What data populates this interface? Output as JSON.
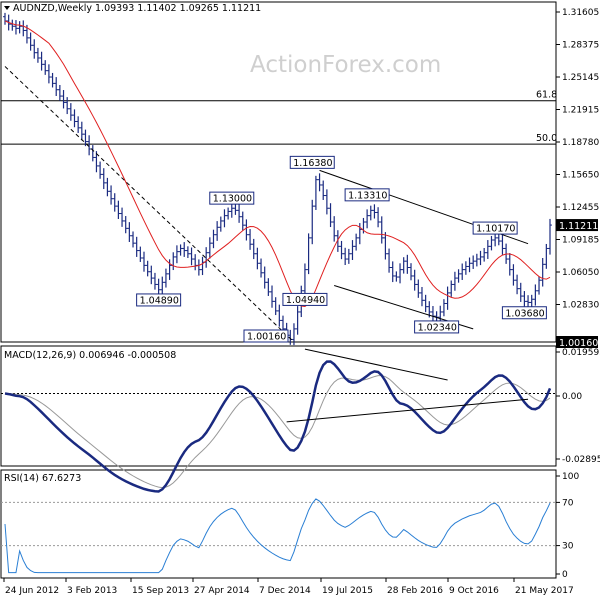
{
  "chart_data": [
    {
      "type": "ohlc",
      "title": "AUDNZD,Weekly",
      "ohlc_readout": {
        "open": "1.09393",
        "high": "1.11402",
        "low": "1.09265",
        "close": "1.11211"
      },
      "watermark": "ActionForex.com",
      "x_tick_labels": [
        "24 Jun 2012",
        "3 Feb 2013",
        "15 Sep 2013",
        "27 Apr 2014",
        "7 Dec 2014",
        "19 Jul 2015",
        "28 Feb 2016",
        "9 Oct 2016",
        "21 May 2017"
      ],
      "y_tick_labels": [
        "1.31605",
        "1.28375",
        "1.25145",
        "1.21915",
        "1.18780",
        "1.15650",
        "1.12455",
        "1.09185",
        "1.06050",
        "1.02830"
      ],
      "ylim": [
        1.0016,
        1.3229
      ],
      "current_price_label": "1.11211",
      "price_levels": [
        {
          "label": "61.8",
          "value": 1.2296
        },
        {
          "label": "50.0",
          "value": 1.1886
        },
        {
          "label": "1.00160",
          "value": 1.0016
        }
      ],
      "swing_labels": [
        {
          "text": "1.16380",
          "index": 84,
          "value": 1.1638
        },
        {
          "text": "1.13310",
          "index": 99,
          "value": 1.1331
        },
        {
          "text": "1.13000",
          "index": 62,
          "value": 1.13
        },
        {
          "text": "1.10170",
          "index": 134,
          "value": 1.1017
        },
        {
          "text": "1.04890",
          "index": 42,
          "value": 1.0489
        },
        {
          "text": "1.04940",
          "index": 82,
          "value": 1.0494
        },
        {
          "text": "1.02340",
          "index": 118,
          "value": 1.0234
        },
        {
          "text": "1.03680",
          "index": 142,
          "value": 1.0368
        },
        {
          "text": "1.00160",
          "index": 78,
          "value": 1.0016
        }
      ],
      "trendlines": [
        {
          "style": "dashed",
          "from": {
            "index": 0,
            "value": 1.262
          },
          "to": {
            "index": 79,
            "value": 1.0016
          }
        },
        {
          "style": "solid",
          "from": {
            "index": 86,
            "value": 1.1638
          },
          "to": {
            "index": 143,
            "value": 1.0945
          }
        },
        {
          "style": "solid",
          "from": {
            "index": 90,
            "value": 1.055
          },
          "to": {
            "index": 128,
            "value": 1.014
          }
        }
      ],
      "series": [
        {
          "name": "price",
          "color": "#1a2a80",
          "closes": [
            1.305,
            1.302,
            1.3,
            1.298,
            1.3,
            1.296,
            1.289,
            1.282,
            1.275,
            1.27,
            1.264,
            1.258,
            1.252,
            1.246,
            1.24,
            1.234,
            1.228,
            1.222,
            1.216,
            1.21,
            1.204,
            1.198,
            1.191,
            1.184,
            1.176,
            1.168,
            1.16,
            1.152,
            1.144,
            1.137,
            1.13,
            1.123,
            1.116,
            1.109,
            1.102,
            1.095,
            1.088,
            1.081,
            1.074,
            1.068,
            1.062,
            1.056,
            1.051,
            1.058,
            1.066,
            1.074,
            1.082,
            1.087,
            1.09,
            1.088,
            1.085,
            1.08,
            1.074,
            1.07,
            1.077,
            1.086,
            1.095,
            1.103,
            1.11,
            1.116,
            1.121,
            1.125,
            1.128,
            1.126,
            1.12,
            1.112,
            1.103,
            1.094,
            1.085,
            1.076,
            1.067,
            1.058,
            1.049,
            1.04,
            1.031,
            1.022,
            1.014,
            1.008,
            1.004,
            1.014,
            1.03,
            1.05,
            1.07,
            1.1,
            1.13,
            1.155,
            1.15,
            1.14,
            1.128,
            1.115,
            1.102,
            1.092,
            1.085,
            1.08,
            1.085,
            1.092,
            1.1,
            1.108,
            1.115,
            1.121,
            1.126,
            1.124,
            1.115,
            1.1,
            1.085,
            1.072,
            1.064,
            1.063,
            1.07,
            1.078,
            1.072,
            1.064,
            1.056,
            1.048,
            1.041,
            1.035,
            1.03,
            1.026,
            1.025,
            1.03,
            1.038,
            1.048,
            1.056,
            1.062,
            1.066,
            1.07,
            1.073,
            1.076,
            1.078,
            1.08,
            1.082,
            1.086,
            1.092,
            1.098,
            1.1,
            1.097,
            1.09,
            1.08,
            1.07,
            1.06,
            1.052,
            1.045,
            1.04,
            1.039,
            1.042,
            1.05,
            1.06,
            1.075,
            1.09,
            1.1121
          ]
        },
        {
          "name": "moving-average",
          "color": "#e02020"
        }
      ]
    },
    {
      "type": "line",
      "title": "MACD(12,26,9) 0.006946 -0.000508",
      "y_tick_labels": [
        "0.019593",
        "0.00",
        "-0.028959"
      ],
      "ylim": [
        -0.032,
        0.021
      ],
      "trendlines": [
        {
          "from": {
            "index": 82,
            "value": 0.0196
          },
          "to": {
            "index": 121,
            "value": 0.006
          }
        },
        {
          "from": {
            "index": 77,
            "value": -0.0125
          },
          "to": {
            "index": 143,
            "value": -0.0025
          }
        }
      ],
      "series": [
        {
          "name": "macd",
          "color": "#1a2a80"
        },
        {
          "name": "signal",
          "color": "#999999"
        }
      ]
    },
    {
      "type": "line",
      "title": "RSI(14) 67.6273",
      "y_tick_labels": [
        "100",
        "70",
        "30",
        "0"
      ],
      "ylim": [
        0,
        100
      ],
      "levels": [
        70,
        30
      ],
      "series": [
        {
          "name": "rsi",
          "color": "#2a7fd4"
        }
      ]
    }
  ]
}
